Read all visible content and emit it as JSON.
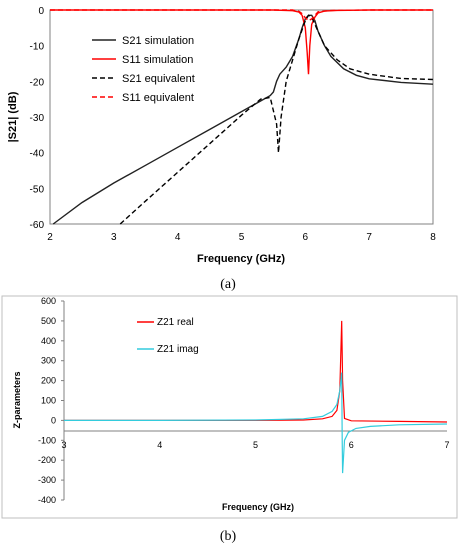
{
  "chart_data": [
    {
      "type": "line",
      "panel_label": "(a)",
      "xlabel": "Frequency (GHz)",
      "ylabel": "|S21| (dB)",
      "xlim": [
        2,
        8
      ],
      "ylim": [
        -60,
        0
      ],
      "xticks": [
        2,
        3,
        4,
        5,
        6,
        7,
        8
      ],
      "yticks": [
        0,
        -10,
        -20,
        -30,
        -40,
        -50,
        -60
      ],
      "grid": false,
      "legend_position": "upper-left",
      "series": [
        {
          "name": "S21 simulation",
          "color": "#222222",
          "dash": "solid",
          "points": [
            [
              2.05,
              -60
            ],
            [
              2.5,
              -54
            ],
            [
              3.0,
              -48.5
            ],
            [
              3.5,
              -43.5
            ],
            [
              4.0,
              -38.5
            ],
            [
              4.5,
              -33.5
            ],
            [
              5.0,
              -28.5
            ],
            [
              5.3,
              -25.5
            ],
            [
              5.45,
              -24
            ],
            [
              5.5,
              -23
            ],
            [
              5.55,
              -20
            ],
            [
              5.6,
              -18
            ],
            [
              5.7,
              -16
            ],
            [
              5.8,
              -13
            ],
            [
              5.9,
              -8
            ],
            [
              5.95,
              -5
            ],
            [
              6.0,
              -2.5
            ],
            [
              6.05,
              -1.5
            ],
            [
              6.1,
              -1.5
            ],
            [
              6.15,
              -3
            ],
            [
              6.2,
              -6
            ],
            [
              6.3,
              -10
            ],
            [
              6.4,
              -13
            ],
            [
              6.6,
              -16.5
            ],
            [
              6.8,
              -18.3
            ],
            [
              7.0,
              -19.3
            ],
            [
              7.5,
              -20.3
            ],
            [
              8.0,
              -20.8
            ]
          ]
        },
        {
          "name": "S11 simulation",
          "color": "#ff0000",
          "dash": "solid",
          "points": [
            [
              2.0,
              0
            ],
            [
              5.5,
              0
            ],
            [
              5.8,
              -0.2
            ],
            [
              5.9,
              -0.6
            ],
            [
              5.95,
              -1.5
            ],
            [
              6.0,
              -5
            ],
            [
              6.03,
              -12
            ],
            [
              6.05,
              -18
            ],
            [
              6.07,
              -10
            ],
            [
              6.1,
              -4
            ],
            [
              6.15,
              -2
            ],
            [
              6.2,
              -0.8
            ],
            [
              6.3,
              -0.3
            ],
            [
              6.5,
              -0.1
            ],
            [
              7.0,
              0
            ],
            [
              8.0,
              0
            ]
          ]
        },
        {
          "name": "S21 equivalent",
          "color": "#000000",
          "dash": "dashed",
          "points": [
            [
              3.1,
              -60
            ],
            [
              3.5,
              -53.5
            ],
            [
              4.0,
              -45.5
            ],
            [
              4.5,
              -37.5
            ],
            [
              5.0,
              -29.5
            ],
            [
              5.3,
              -25
            ],
            [
              5.45,
              -24.5
            ],
            [
              5.55,
              -32
            ],
            [
              5.58,
              -40
            ],
            [
              5.62,
              -30
            ],
            [
              5.7,
              -20
            ],
            [
              5.8,
              -14
            ],
            [
              5.9,
              -8
            ],
            [
              6.0,
              -3
            ],
            [
              6.05,
              -1.5
            ],
            [
              6.1,
              -2
            ],
            [
              6.2,
              -6
            ],
            [
              6.3,
              -10
            ],
            [
              6.5,
              -14
            ],
            [
              6.7,
              -16.5
            ],
            [
              7.0,
              -18
            ],
            [
              7.5,
              -19.2
            ],
            [
              8.0,
              -19.5
            ]
          ]
        },
        {
          "name": "S11 equivalent",
          "color": "#ff0000",
          "dash": "dashed",
          "points": [
            [
              2.0,
              0
            ],
            [
              5.8,
              0
            ],
            [
              5.9,
              -0.4
            ],
            [
              5.95,
              -1
            ],
            [
              6.0,
              -2.2
            ],
            [
              6.05,
              -3
            ],
            [
              6.1,
              -2.5
            ],
            [
              6.15,
              -1.5
            ],
            [
              6.2,
              -0.5
            ],
            [
              6.4,
              -0.1
            ],
            [
              7.0,
              0
            ],
            [
              8.0,
              0
            ]
          ]
        }
      ]
    },
    {
      "type": "line",
      "panel_label": "(b)",
      "xlabel": "Frequency (GHz)",
      "ylabel": "Z-parameters",
      "xlim": [
        3,
        7
      ],
      "ylim": [
        -400,
        600
      ],
      "xticks": [
        3,
        4,
        5,
        6,
        7
      ],
      "yticks": [
        600,
        500,
        400,
        300,
        200,
        100,
        0,
        -100,
        -200,
        -300,
        -400
      ],
      "grid": false,
      "legend_position": "top-center",
      "series": [
        {
          "name": "Z21 real",
          "color": "#ff0000",
          "dash": "solid",
          "points": [
            [
              3.0,
              0
            ],
            [
              4.0,
              0
            ],
            [
              5.0,
              0
            ],
            [
              5.5,
              2
            ],
            [
              5.7,
              8
            ],
            [
              5.8,
              20
            ],
            [
              5.85,
              50
            ],
            [
              5.88,
              150
            ],
            [
              5.9,
              500
            ],
            [
              5.91,
              200
            ],
            [
              5.93,
              10
            ],
            [
              6.0,
              -2
            ],
            [
              6.5,
              -5
            ],
            [
              7.0,
              -8
            ]
          ]
        },
        {
          "name": "Z21 imag",
          "color": "#33ccdd",
          "dash": "solid",
          "points": [
            [
              3.0,
              0
            ],
            [
              4.0,
              0
            ],
            [
              5.0,
              2
            ],
            [
              5.5,
              8
            ],
            [
              5.7,
              20
            ],
            [
              5.8,
              45
            ],
            [
              5.85,
              80
            ],
            [
              5.88,
              150
            ],
            [
              5.9,
              240
            ],
            [
              5.905,
              -100
            ],
            [
              5.91,
              -265
            ],
            [
              5.93,
              -100
            ],
            [
              5.97,
              -60
            ],
            [
              6.05,
              -40
            ],
            [
              6.2,
              -30
            ],
            [
              6.5,
              -22
            ],
            [
              7.0,
              -18
            ]
          ]
        }
      ]
    }
  ]
}
